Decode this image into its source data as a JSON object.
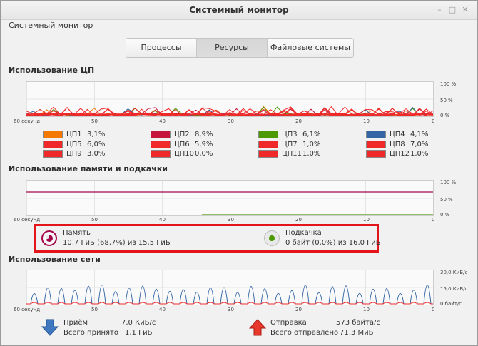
{
  "window": {
    "title": "Системный монитор",
    "menu": "Системный монитор",
    "minimize": "–",
    "maximize": "□",
    "close": "✕"
  },
  "tabs": [
    {
      "label": "Процессы",
      "active": false
    },
    {
      "label": "Ресурсы",
      "active": true
    },
    {
      "label": "Файловые системы",
      "active": false
    }
  ],
  "cpu": {
    "title": "Использование ЦП",
    "x_ticks": [
      "60 секунд",
      "50",
      "40",
      "30",
      "20",
      "10",
      "0"
    ],
    "y_ticks": [
      "100 %",
      "50 %",
      "0 %"
    ],
    "legend": [
      {
        "name": "ЦП1",
        "value": "3,1%",
        "color": "#f57900"
      },
      {
        "name": "ЦП2",
        "value": "8,9%",
        "color": "#c4143b"
      },
      {
        "name": "ЦП3",
        "value": "6,1%",
        "color": "#4e9a06"
      },
      {
        "name": "ЦП4",
        "value": "4,1%",
        "color": "#3465a4"
      },
      {
        "name": "ЦП5",
        "value": "6,0%",
        "color": "#ef2929"
      },
      {
        "name": "ЦП6",
        "value": "5,9%",
        "color": "#ef2929"
      },
      {
        "name": "ЦП7",
        "value": "1,0%",
        "color": "#ef2929"
      },
      {
        "name": "ЦП8",
        "value": "7,0%",
        "color": "#ef2929"
      },
      {
        "name": "ЦП9",
        "value": "3,0%",
        "color": "#ef2929"
      },
      {
        "name": "ЦП10",
        "value": "0,0%",
        "color": "#ef2929"
      },
      {
        "name": "ЦП11",
        "value": "1,0%",
        "color": "#ef2929"
      },
      {
        "name": "ЦП12",
        "value": "1,0%",
        "color": "#ef2929"
      }
    ]
  },
  "memory": {
    "title": "Использование памяти и подкачки",
    "x_ticks": [
      "60 секунд",
      "50",
      "40",
      "30",
      "20",
      "10",
      "0"
    ],
    "y_ticks": [
      "100 %",
      "50 %",
      "0 %"
    ],
    "mem_label": "Память",
    "mem_detail": "10,7 ГиБ (68,7%) из 15,5 ГиБ",
    "mem_color": "#a40a4a",
    "mem_fraction": 0.687,
    "swap_label": "Подкачка",
    "swap_detail": "0 байт (0,0%) из 16,0 ГиБ",
    "swap_color": "#4e9a06",
    "swap_fraction": 0.0
  },
  "network": {
    "title": "Использование сети",
    "x_ticks": [
      "60 секунд",
      "50",
      "40",
      "30",
      "20",
      "10",
      "0"
    ],
    "y_ticks": [
      "30,0 КиБ/с",
      "15,0 КиБ/с",
      "0 байт/с"
    ],
    "recv_label": "Приём",
    "recv_rate": "7,0 КиБ/с",
    "recv_total_label": "Всего принято",
    "recv_total": "1,1 ГиБ",
    "recv_color": "#3465a4",
    "send_label": "Отправка",
    "send_rate": "573 байта/с",
    "send_total_label": "Всего отправлено",
    "send_total": "71,3 МиБ",
    "send_color": "#ef2929"
  }
}
